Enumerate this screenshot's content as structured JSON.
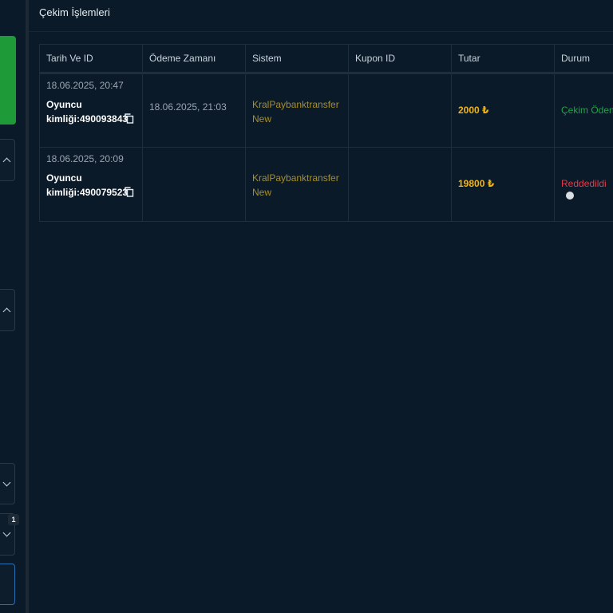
{
  "page": {
    "title": "Çekim İşlemleri"
  },
  "sidebar": {
    "badge": "1"
  },
  "table": {
    "columns": [
      "Tarih Ve ID",
      "Ödeme Zamanı",
      "Sistem",
      "Kupon ID",
      "Tutar",
      "Durum"
    ],
    "rows": [
      {
        "date": "18.06.2025, 20:47",
        "player": "Oyuncu kimliği:490093843",
        "payment_time": "18.06.2025, 21:03",
        "system": "KralPaybanktransfer New",
        "coupon_id": "",
        "amount": "2000 ₺",
        "status": "Çekim Ödendi",
        "status_color": "#21a24a"
      },
      {
        "date": "18.06.2025, 20:09",
        "player": "Oyuncu kimliği:490079523",
        "payment_time": "",
        "system": "KralPaybanktransfer New",
        "coupon_id": "",
        "amount": "19800 ₺",
        "status": "Reddedildi",
        "status_color": "#e23c4a"
      }
    ]
  },
  "colors": {
    "background": "#0b1a28",
    "accent_green": "#1f9a38",
    "amount": "#f0b418",
    "system_text": "#a88e28"
  }
}
